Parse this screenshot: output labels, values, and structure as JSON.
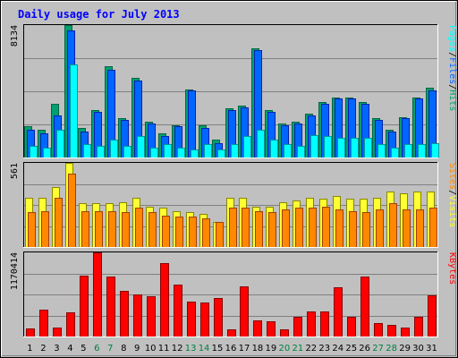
{
  "title": "Daily usage for July 2013",
  "colors": {
    "background": "#c0c0c0",
    "title": "#0000ff",
    "hits_dark": "#006644",
    "hits_light": "#00a070",
    "files_dark": "#0022aa",
    "files_light": "#0066ff",
    "pages_dark": "#009999",
    "pages_light": "#00ffff",
    "visits_dark": "#888800",
    "visits_light": "#ffff33",
    "sites_dark": "#a04000",
    "sites_light": "#ff8800",
    "kbytes_dark": "#880000",
    "kbytes_light": "#ff0000",
    "weekend_label": "#008040"
  },
  "chart_data": [
    {
      "type": "bar",
      "name": "hits-files-pages",
      "ymax_label": "8134",
      "ylim": [
        0,
        8134
      ],
      "legend": [
        {
          "label": "Pages",
          "key": "pages"
        },
        {
          "label": "/",
          "key": "sep"
        },
        {
          "label": "Files",
          "key": "files"
        },
        {
          "label": "/",
          "key": "sep"
        },
        {
          "label": "Hits",
          "key": "hits"
        }
      ],
      "categories": [
        "1",
        "2",
        "3",
        "4",
        "5",
        "6",
        "7",
        "8",
        "9",
        "10",
        "11",
        "12",
        "13",
        "14",
        "15",
        "16",
        "17",
        "18",
        "19",
        "20",
        "21",
        "22",
        "23",
        "24",
        "25",
        "26",
        "27",
        "28",
        "29",
        "30",
        "31"
      ],
      "weekend": [
        6,
        7,
        13,
        14,
        20,
        21,
        27,
        28
      ],
      "series": [
        {
          "name": "Hits",
          "key": "hits",
          "values": [
            1900,
            1700,
            3300,
            8134,
            1800,
            2900,
            5600,
            2400,
            4900,
            2200,
            1500,
            2000,
            4200,
            2000,
            1100,
            3000,
            3200,
            6700,
            2900,
            2100,
            2200,
            2700,
            3400,
            3700,
            3700,
            3400,
            2400,
            1700,
            2500,
            3700,
            4300
          ]
        },
        {
          "name": "Files",
          "key": "files",
          "values": [
            1700,
            1500,
            2600,
            7800,
            1600,
            2800,
            5400,
            2300,
            4700,
            2100,
            1300,
            1900,
            4100,
            1800,
            900,
            2900,
            3100,
            6600,
            2800,
            2000,
            2100,
            2600,
            3300,
            3600,
            3600,
            3300,
            2300,
            1600,
            2400,
            3600,
            4100
          ]
        },
        {
          "name": "Pages",
          "key": "pages",
          "values": [
            700,
            600,
            1700,
            5700,
            800,
            700,
            1100,
            700,
            1300,
            600,
            800,
            600,
            500,
            800,
            500,
            800,
            1300,
            1700,
            1100,
            800,
            700,
            1400,
            1300,
            1200,
            1200,
            1200,
            800,
            600,
            800,
            800,
            900
          ]
        }
      ]
    },
    {
      "type": "bar",
      "name": "visits-sites",
      "ymax_label": "561",
      "ylim": [
        0,
        561
      ],
      "legend": [
        {
          "label": "Sites",
          "key": "sites"
        },
        {
          "label": "/",
          "key": "sep"
        },
        {
          "label": "Visits",
          "key": "visits"
        }
      ],
      "categories": [
        "1",
        "2",
        "3",
        "4",
        "5",
        "6",
        "7",
        "8",
        "9",
        "10",
        "11",
        "12",
        "13",
        "14",
        "15",
        "16",
        "17",
        "18",
        "19",
        "20",
        "21",
        "22",
        "23",
        "24",
        "25",
        "26",
        "27",
        "28",
        "29",
        "30",
        "31"
      ],
      "series": [
        {
          "name": "Visits",
          "key": "visits",
          "values": [
            330,
            330,
            400,
            561,
            290,
            290,
            290,
            300,
            330,
            270,
            260,
            240,
            230,
            220,
            170,
            330,
            330,
            270,
            270,
            300,
            310,
            330,
            320,
            340,
            320,
            320,
            330,
            370,
            360,
            370,
            370
          ]
        },
        {
          "name": "Sites",
          "key": "sites",
          "values": [
            230,
            240,
            330,
            490,
            240,
            240,
            240,
            230,
            260,
            230,
            210,
            200,
            200,
            190,
            170,
            260,
            260,
            240,
            230,
            250,
            260,
            260,
            270,
            250,
            240,
            230,
            250,
            290,
            250,
            250,
            260
          ]
        }
      ]
    },
    {
      "type": "bar",
      "name": "kbytes",
      "ymax_label": "1170414",
      "ylim": [
        0,
        1170414
      ],
      "legend": [
        {
          "label": "KBytes",
          "key": "kbytes"
        }
      ],
      "categories": [
        "1",
        "2",
        "3",
        "4",
        "5",
        "6",
        "7",
        "8",
        "9",
        "10",
        "11",
        "12",
        "13",
        "14",
        "15",
        "16",
        "17",
        "18",
        "19",
        "20",
        "21",
        "22",
        "23",
        "24",
        "25",
        "26",
        "27",
        "28",
        "29",
        "30",
        "31"
      ],
      "series": [
        {
          "name": "KBytes",
          "key": "kbytes",
          "values": [
            110000,
            370000,
            130000,
            340000,
            850000,
            1170414,
            830000,
            630000,
            580000,
            560000,
            1020000,
            720000,
            480000,
            470000,
            530000,
            100000,
            700000,
            230000,
            210000,
            100000,
            270000,
            350000,
            350000,
            690000,
            280000,
            840000,
            190000,
            160000,
            120000,
            280000,
            570000
          ]
        }
      ]
    }
  ]
}
